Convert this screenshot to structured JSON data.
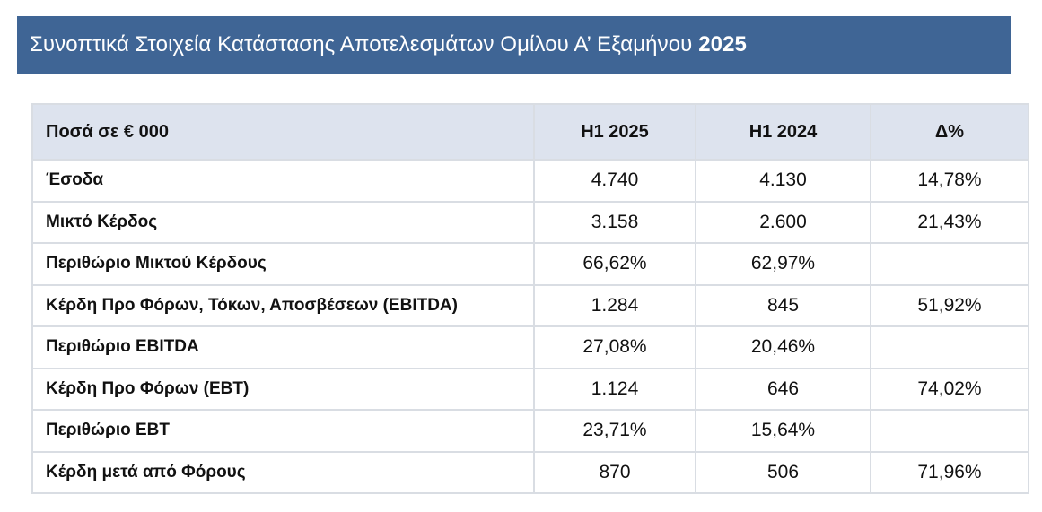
{
  "title": {
    "text": "Συνοπτικά Στοιχεία Κατάστασης Αποτελεσμάτων Ομίλου Α’ Εξαμήνου",
    "year": "2025"
  },
  "table": {
    "headers": [
      "Ποσά σε € 000",
      "H1 2025",
      "H1 2024",
      "Δ%"
    ],
    "rows": [
      {
        "label": "Έσοδα",
        "h1_2025": "4.740",
        "h1_2024": "4.130",
        "delta": "14,78%"
      },
      {
        "label": "Μικτό Κέρδος",
        "h1_2025": "3.158",
        "h1_2024": "2.600",
        "delta": "21,43%"
      },
      {
        "label": "Περιθώριο Μικτού Κέρδους",
        "h1_2025": "66,62%",
        "h1_2024": "62,97%",
        "delta": ""
      },
      {
        "label": "Κέρδη Προ Φόρων, Τόκων, Αποσβέσεων (EBITDA)",
        "h1_2025": "1.284",
        "h1_2024": "845",
        "delta": "51,92%"
      },
      {
        "label": "Περιθώριο EBITDA",
        "h1_2025": "27,08%",
        "h1_2024": "20,46%",
        "delta": ""
      },
      {
        "label": "Κέρδη Προ Φόρων (EBT)",
        "h1_2025": "1.124",
        "h1_2024": "646",
        "delta": "74,02%"
      },
      {
        "label": "Περιθώριο EBT",
        "h1_2025": "23,71%",
        "h1_2024": "15,64%",
        "delta": ""
      },
      {
        "label": "Κέρδη μετά από Φόρους",
        "h1_2025": "870",
        "h1_2024": "506",
        "delta": "71,96%"
      }
    ]
  },
  "colors": {
    "title_background": "#3f6595",
    "title_text": "#ffffff",
    "header_background": "#dde3ee",
    "grid_lines": "#d9dde3"
  }
}
